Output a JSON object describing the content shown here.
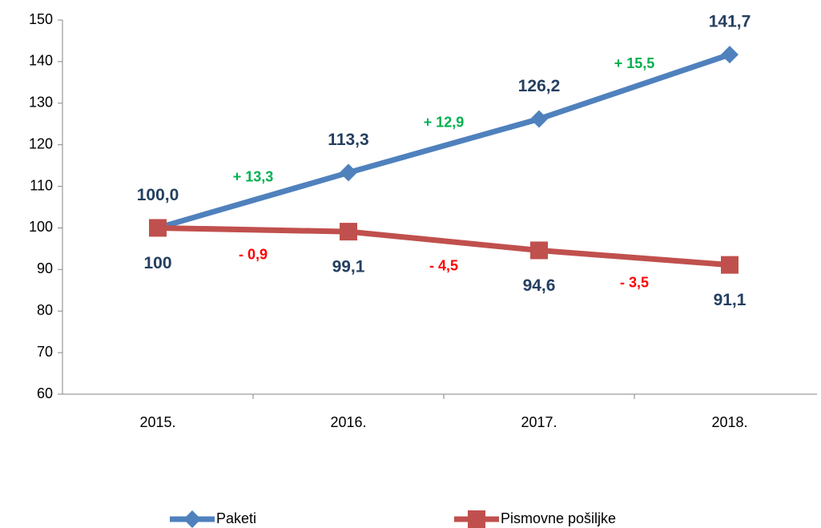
{
  "chart_data": {
    "type": "line",
    "categories": [
      "2015.",
      "2016.",
      "2017.",
      "2018."
    ],
    "series": [
      {
        "name": "Paketi",
        "color": "#4f81bd",
        "marker": "diamond",
        "values": [
          100,
          113.3,
          126.2,
          141.7
        ],
        "value_labels": [
          "100,0",
          "113,3",
          "126,2",
          "141,7"
        ],
        "change_labels": [
          "+ 13,3",
          "+ 12,9",
          "+ 15,5"
        ],
        "change_color": "#00b050"
      },
      {
        "name": "Pismovne pošiljke",
        "color": "#c0504d",
        "marker": "square",
        "values": [
          100,
          99.1,
          94.6,
          91.1
        ],
        "value_labels": [
          "100",
          "99,1",
          "94,6",
          "91,1"
        ],
        "change_labels": [
          "- 0,9",
          "- 4,5",
          "- 3,5"
        ],
        "change_color": "#ff0000"
      }
    ],
    "ylim": [
      60,
      150
    ],
    "yticks": [
      60,
      70,
      80,
      90,
      100,
      110,
      120,
      130,
      140,
      150
    ],
    "grid": false,
    "legend": "bottom"
  }
}
